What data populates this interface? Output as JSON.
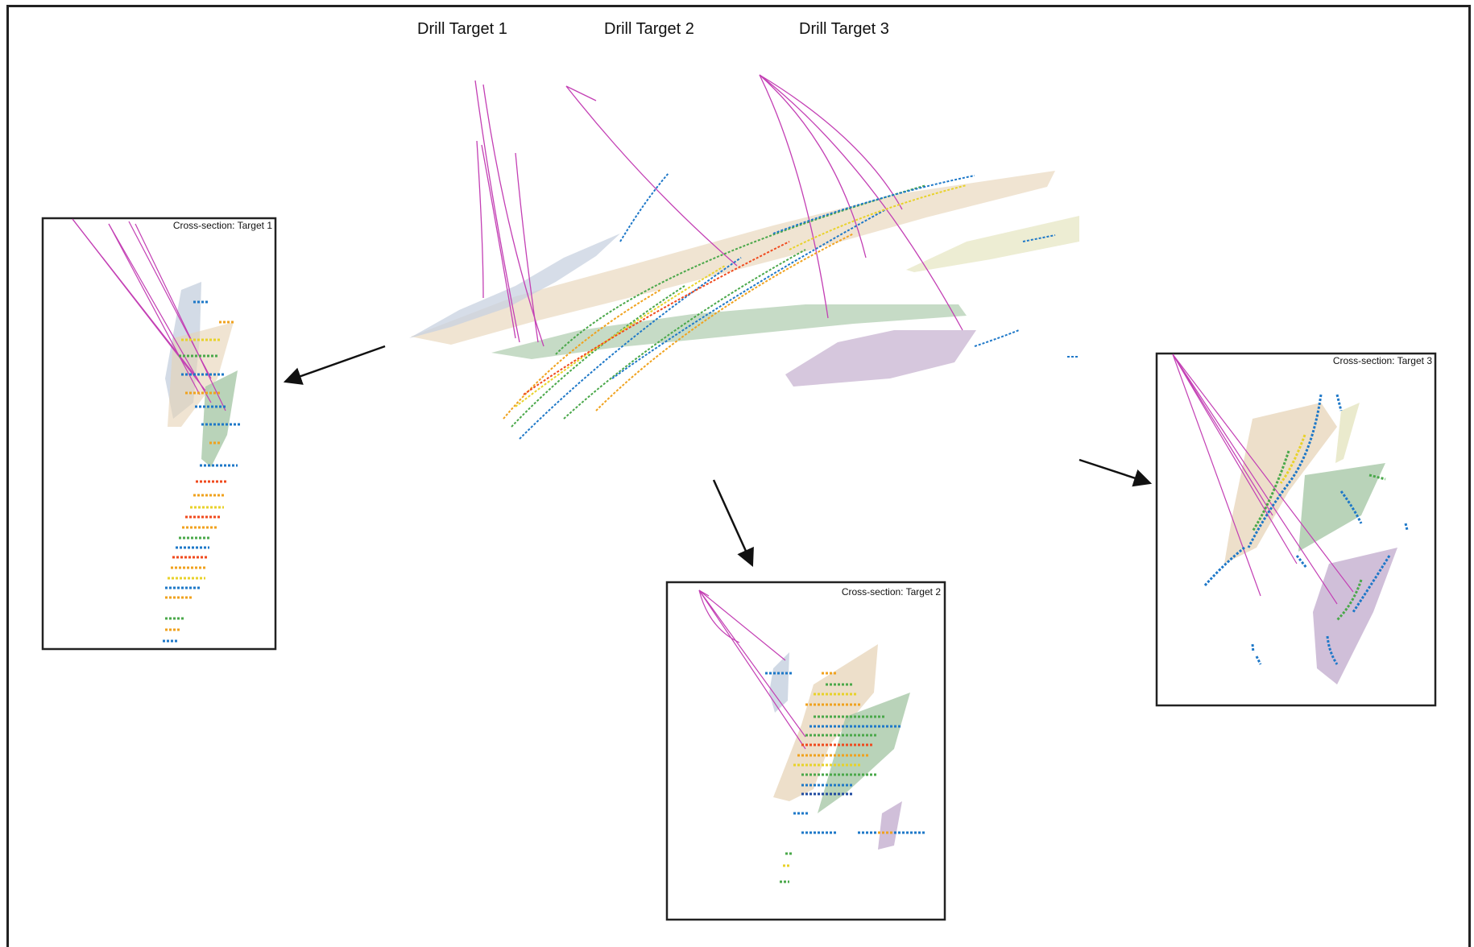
{
  "labels": {
    "target1": "Drill Target 1",
    "target2": "Drill Target 2",
    "target3": "Drill Target 3"
  },
  "panels": {
    "section1": "Cross-section: Target 1",
    "section2": "Cross-section: Target 2",
    "section3": "Cross-section: Target 3"
  },
  "colors": {
    "drillhole": "#c33fb4",
    "ore_tan": "#e6d2b4",
    "ore_green": "#a8c8a8",
    "ore_blue": "#c8d2e0",
    "ore_purple": "#c8b4d2",
    "ore_cream": "#e8e8c8",
    "assay": [
      "#f04a1e",
      "#f0a21e",
      "#e8d22a",
      "#4aa84a",
      "#1e78c8",
      "#1e4aa0"
    ]
  },
  "icons": [
    "arrow-icon"
  ]
}
